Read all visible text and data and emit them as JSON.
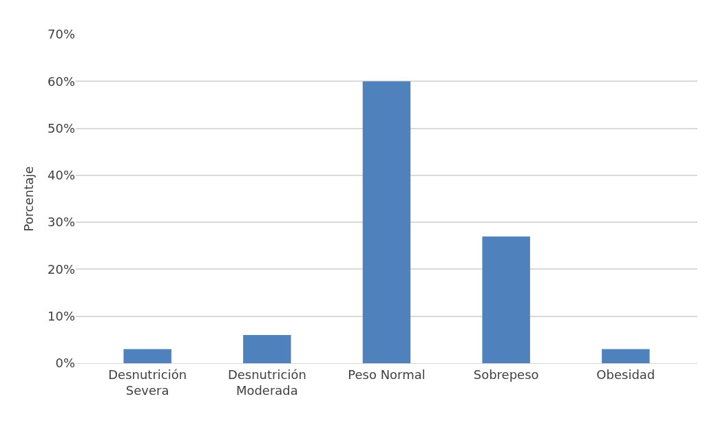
{
  "chart_data": {
    "type": "bar",
    "ylabel": "Porcentaje",
    "categories": [
      "Desnutrición\nSevera",
      "Desnutrición\nModerada",
      "Peso Normal",
      "Sobrepeso",
      "Obesidad"
    ],
    "values": [
      3,
      6,
      60,
      27,
      3
    ],
    "color": "#4f81bd",
    "ylim": [
      0,
      70
    ],
    "yticks": [
      {
        "value": 0,
        "label": "0%"
      },
      {
        "value": 10,
        "label": "10%"
      },
      {
        "value": 20,
        "label": "20%"
      },
      {
        "value": 30,
        "label": "30%"
      },
      {
        "value": 40,
        "label": "40%"
      },
      {
        "value": 50,
        "label": "50%"
      },
      {
        "value": 60,
        "label": "60%"
      },
      {
        "value": 70,
        "label": "70%"
      }
    ],
    "grid": "y"
  }
}
